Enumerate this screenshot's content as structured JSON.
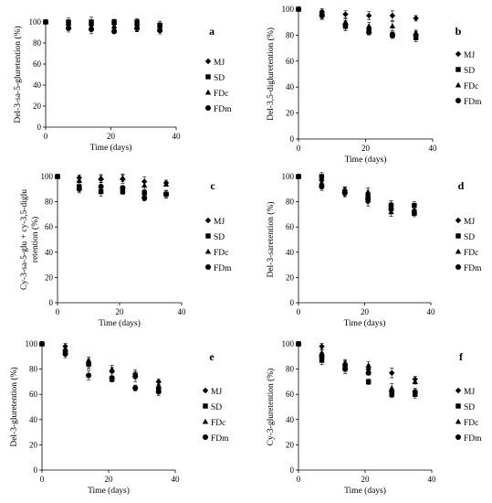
{
  "chart_data": [
    {
      "id": "a",
      "type": "scatter",
      "panel_letter": "a",
      "xlabel": "Time (days)",
      "ylabel": "Del-3-sa-5-gluretention (%)",
      "xlim": [
        0,
        40
      ],
      "ylim": [
        0,
        100
      ],
      "xticks": [
        0,
        20,
        40
      ],
      "yticks": [
        0,
        20,
        40,
        60,
        80,
        100
      ],
      "legend_position": "right",
      "series": [
        {
          "name": "MJ",
          "marker": "diamond",
          "points": [
            [
              0,
              100
            ],
            [
              7,
              97
            ],
            [
              14,
              97
            ],
            [
              21,
              98
            ],
            [
              28,
              97
            ],
            [
              35,
              95
            ]
          ]
        },
        {
          "name": "SD",
          "marker": "square",
          "points": [
            [
              0,
              100
            ],
            [
              7,
              100
            ],
            [
              14,
              100
            ],
            [
              21,
              100
            ],
            [
              28,
              100
            ],
            [
              35,
              97
            ]
          ]
        },
        {
          "name": "FDc",
          "marker": "triangle",
          "points": [
            [
              0,
              100
            ],
            [
              7,
              96
            ],
            [
              14,
              95
            ],
            [
              21,
              96
            ],
            [
              28,
              95
            ],
            [
              35,
              94
            ]
          ]
        },
        {
          "name": "FDm",
          "marker": "circle",
          "points": [
            [
              0,
              100
            ],
            [
              7,
              94
            ],
            [
              14,
              93
            ],
            [
              21,
              91
            ],
            [
              28,
              94
            ],
            [
              35,
              92
            ]
          ]
        }
      ]
    },
    {
      "id": "b",
      "type": "scatter",
      "panel_letter": "b",
      "xlabel": "Time (days)",
      "ylabel": "Del-3,5-digluretention (%)",
      "xlim": [
        0,
        40
      ],
      "ylim": [
        0,
        100
      ],
      "xticks": [
        0,
        20,
        40
      ],
      "yticks": [
        0,
        20,
        40,
        60,
        80,
        100
      ],
      "legend_position": "right",
      "series": [
        {
          "name": "MJ",
          "marker": "diamond",
          "points": [
            [
              0,
              100
            ],
            [
              7,
              98
            ],
            [
              14,
              96
            ],
            [
              21,
              95
            ],
            [
              28,
              95
            ],
            [
              35,
              93
            ]
          ]
        },
        {
          "name": "SD",
          "marker": "square",
          "points": [
            [
              0,
              100
            ],
            [
              7,
              96
            ],
            [
              14,
              87
            ],
            [
              21,
              84
            ],
            [
              28,
              80
            ],
            [
              35,
              78
            ]
          ]
        },
        {
          "name": "FDc",
          "marker": "triangle",
          "points": [
            [
              0,
              100
            ],
            [
              7,
              97
            ],
            [
              14,
              90
            ],
            [
              21,
              87
            ],
            [
              28,
              87
            ],
            [
              35,
              82
            ]
          ]
        },
        {
          "name": "FDm",
          "marker": "circle",
          "points": [
            [
              0,
              100
            ],
            [
              7,
              95
            ],
            [
              14,
              88
            ],
            [
              21,
              82
            ],
            [
              28,
              80
            ],
            [
              35,
              80
            ]
          ]
        }
      ]
    },
    {
      "id": "c",
      "type": "scatter",
      "panel_letter": "c",
      "xlabel": "Time (days)",
      "ylabel_lines": [
        "Cy-3-sa-5-glu + cy-3,5-diglu",
        "retention (%)"
      ],
      "xlim": [
        0,
        40
      ],
      "ylim": [
        0,
        100
      ],
      "xticks": [
        0,
        20,
        40
      ],
      "yticks": [
        0,
        20,
        40,
        60,
        80,
        100
      ],
      "legend_position": "right",
      "series": [
        {
          "name": "MJ",
          "marker": "diamond",
          "points": [
            [
              0,
              100
            ],
            [
              7,
              99
            ],
            [
              14,
              98
            ],
            [
              21,
              98
            ],
            [
              28,
              96
            ],
            [
              35,
              95
            ]
          ]
        },
        {
          "name": "SD",
          "marker": "square",
          "points": [
            [
              0,
              100
            ],
            [
              7,
              92
            ],
            [
              14,
              88
            ],
            [
              21,
              88
            ],
            [
              28,
              87
            ],
            [
              35,
              86
            ]
          ]
        },
        {
          "name": "FDc",
          "marker": "triangle",
          "points": [
            [
              0,
              100
            ],
            [
              7,
              97
            ],
            [
              14,
              99
            ],
            [
              21,
              99
            ],
            [
              28,
              93
            ],
            [
              35,
              94
            ]
          ]
        },
        {
          "name": "FDm",
          "marker": "circle",
          "points": [
            [
              0,
              100
            ],
            [
              7,
              90
            ],
            [
              14,
              92
            ],
            [
              21,
              91
            ],
            [
              28,
              83
            ],
            [
              35,
              86
            ]
          ]
        }
      ]
    },
    {
      "id": "d",
      "type": "scatter",
      "panel_letter": "d",
      "xlabel": "Time (days)",
      "ylabel": "Del-3-saretention (%)",
      "xlim": [
        0,
        40
      ],
      "ylim": [
        0,
        100
      ],
      "xticks": [
        0,
        20,
        40
      ],
      "yticks": [
        0,
        20,
        40,
        60,
        80,
        100
      ],
      "legend_position": "right",
      "series": [
        {
          "name": "MJ",
          "marker": "diamond",
          "points": [
            [
              0,
              100
            ],
            [
              7,
              97
            ],
            [
              14,
              88
            ],
            [
              21,
              80
            ],
            [
              28,
              77
            ],
            [
              35,
              73
            ]
          ]
        },
        {
          "name": "SD",
          "marker": "square",
          "points": [
            [
              0,
              100
            ],
            [
              7,
              100
            ],
            [
              14,
              88
            ],
            [
              21,
              84
            ],
            [
              28,
              77
            ],
            [
              35,
              77
            ]
          ]
        },
        {
          "name": "FDc",
          "marker": "triangle",
          "points": [
            [
              0,
              100
            ],
            [
              7,
              95
            ],
            [
              14,
              89
            ],
            [
              21,
              88
            ],
            [
              28,
              72
            ],
            [
              35,
              71
            ]
          ]
        },
        {
          "name": "FDm",
          "marker": "circle",
          "points": [
            [
              0,
              100
            ],
            [
              7,
              92
            ],
            [
              14,
              87
            ],
            [
              21,
              82
            ],
            [
              28,
              74
            ],
            [
              35,
              71
            ]
          ]
        }
      ]
    },
    {
      "id": "e",
      "type": "scatter",
      "panel_letter": "e",
      "xlabel": "Time (days)",
      "ylabel": "Del-3-gluretention (%)",
      "xlim": [
        0,
        40
      ],
      "ylim": [
        0,
        100
      ],
      "xticks": [
        0,
        20,
        40
      ],
      "yticks": [
        0,
        20,
        40,
        60,
        80,
        100
      ],
      "legend_position": "right",
      "series": [
        {
          "name": "MJ",
          "marker": "diamond",
          "points": [
            [
              0,
              100
            ],
            [
              7,
              98
            ],
            [
              14,
              84
            ],
            [
              21,
              78
            ],
            [
              28,
              74
            ],
            [
              35,
              70
            ]
          ]
        },
        {
          "name": "SD",
          "marker": "square",
          "points": [
            [
              0,
              100
            ],
            [
              7,
              94
            ],
            [
              14,
              84
            ],
            [
              21,
              72
            ],
            [
              28,
              75
            ],
            [
              35,
              64
            ]
          ]
        },
        {
          "name": "FDc",
          "marker": "triangle",
          "points": [
            [
              0,
              100
            ],
            [
              7,
              96
            ],
            [
              14,
              87
            ],
            [
              21,
              80
            ],
            [
              28,
              76
            ],
            [
              35,
              67
            ]
          ]
        },
        {
          "name": "FDm",
          "marker": "circle",
          "points": [
            [
              0,
              100
            ],
            [
              7,
              92
            ],
            [
              14,
              75
            ],
            [
              21,
              73
            ],
            [
              28,
              65
            ],
            [
              35,
              62
            ]
          ]
        }
      ]
    },
    {
      "id": "f",
      "type": "scatter",
      "panel_letter": "f",
      "xlabel": "Time (days)",
      "ylabel": "Cy-3-gluretention (%)",
      "xlim": [
        0,
        40
      ],
      "ylim": [
        0,
        100
      ],
      "xticks": [
        0,
        20,
        40
      ],
      "yticks": [
        0,
        20,
        40,
        60,
        80,
        100
      ],
      "legend_position": "right",
      "series": [
        {
          "name": "MJ",
          "marker": "diamond",
          "points": [
            [
              0,
              100
            ],
            [
              7,
              98
            ],
            [
              14,
              84
            ],
            [
              21,
              80
            ],
            [
              28,
              77
            ],
            [
              35,
              72
            ]
          ]
        },
        {
          "name": "SD",
          "marker": "square",
          "points": [
            [
              0,
              100
            ],
            [
              7,
              87
            ],
            [
              14,
              82
            ],
            [
              21,
              70
            ],
            [
              28,
              60
            ],
            [
              35,
              60
            ]
          ]
        },
        {
          "name": "FDc",
          "marker": "triangle",
          "points": [
            [
              0,
              100
            ],
            [
              7,
              93
            ],
            [
              14,
              85
            ],
            [
              21,
              83
            ],
            [
              28,
              65
            ],
            [
              35,
              70
            ]
          ]
        },
        {
          "name": "FDm",
          "marker": "circle",
          "points": [
            [
              0,
              100
            ],
            [
              7,
              90
            ],
            [
              14,
              80
            ],
            [
              21,
              77
            ],
            [
              28,
              62
            ],
            [
              35,
              62
            ]
          ]
        }
      ]
    }
  ]
}
